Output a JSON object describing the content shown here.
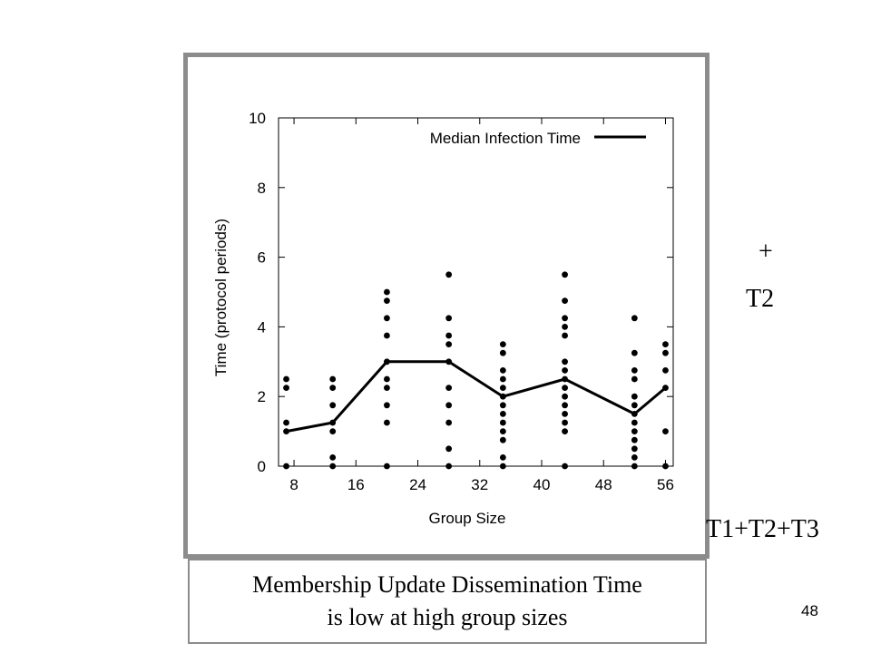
{
  "chart_data": {
    "type": "scatter",
    "xlabel": "Group Size",
    "ylabel": "Time (protocol periods)",
    "xlim": [
      6,
      57
    ],
    "ylim": [
      0,
      10
    ],
    "x_ticks": [
      8,
      16,
      24,
      32,
      40,
      48,
      56
    ],
    "y_ticks": [
      0,
      2,
      4,
      6,
      8,
      10
    ],
    "grid": false,
    "legend": "top-right",
    "series": [
      {
        "name": "Median Infection Time",
        "type": "line",
        "x": [
          7,
          13,
          20,
          28,
          35,
          43,
          52,
          56
        ],
        "y": [
          1.0,
          1.25,
          3.0,
          3.0,
          2.0,
          2.5,
          1.5,
          2.25
        ]
      }
    ],
    "scatter_points": [
      {
        "x": 7,
        "y": 0
      },
      {
        "x": 7,
        "y": 1
      },
      {
        "x": 7,
        "y": 1.25
      },
      {
        "x": 7,
        "y": 2.25
      },
      {
        "x": 7,
        "y": 2.5
      },
      {
        "x": 13,
        "y": 0
      },
      {
        "x": 13,
        "y": 0.25
      },
      {
        "x": 13,
        "y": 1
      },
      {
        "x": 13,
        "y": 1.25
      },
      {
        "x": 13,
        "y": 1.75
      },
      {
        "x": 13,
        "y": 2.25
      },
      {
        "x": 13,
        "y": 2.5
      },
      {
        "x": 20,
        "y": 0
      },
      {
        "x": 20,
        "y": 1.25
      },
      {
        "x": 20,
        "y": 1.75
      },
      {
        "x": 20,
        "y": 2.25
      },
      {
        "x": 20,
        "y": 2.5
      },
      {
        "x": 20,
        "y": 3
      },
      {
        "x": 20,
        "y": 3.75
      },
      {
        "x": 20,
        "y": 4.25
      },
      {
        "x": 20,
        "y": 4.75
      },
      {
        "x": 20,
        "y": 5
      },
      {
        "x": 28,
        "y": 0
      },
      {
        "x": 28,
        "y": 0.5
      },
      {
        "x": 28,
        "y": 1.25
      },
      {
        "x": 28,
        "y": 1.75
      },
      {
        "x": 28,
        "y": 2.25
      },
      {
        "x": 28,
        "y": 3
      },
      {
        "x": 28,
        "y": 3.5
      },
      {
        "x": 28,
        "y": 3.75
      },
      {
        "x": 28,
        "y": 4.25
      },
      {
        "x": 28,
        "y": 5.5
      },
      {
        "x": 35,
        "y": 0
      },
      {
        "x": 35,
        "y": 0.25
      },
      {
        "x": 35,
        "y": 0.75
      },
      {
        "x": 35,
        "y": 1
      },
      {
        "x": 35,
        "y": 1.25
      },
      {
        "x": 35,
        "y": 1.5
      },
      {
        "x": 35,
        "y": 1.75
      },
      {
        "x": 35,
        "y": 2
      },
      {
        "x": 35,
        "y": 2.25
      },
      {
        "x": 35,
        "y": 2.5
      },
      {
        "x": 35,
        "y": 2.75
      },
      {
        "x": 35,
        "y": 3.25
      },
      {
        "x": 35,
        "y": 3.5
      },
      {
        "x": 43,
        "y": 0
      },
      {
        "x": 43,
        "y": 1
      },
      {
        "x": 43,
        "y": 1.25
      },
      {
        "x": 43,
        "y": 1.5
      },
      {
        "x": 43,
        "y": 1.75
      },
      {
        "x": 43,
        "y": 2
      },
      {
        "x": 43,
        "y": 2.25
      },
      {
        "x": 43,
        "y": 2.5
      },
      {
        "x": 43,
        "y": 2.75
      },
      {
        "x": 43,
        "y": 3
      },
      {
        "x": 43,
        "y": 3.75
      },
      {
        "x": 43,
        "y": 4
      },
      {
        "x": 43,
        "y": 4.25
      },
      {
        "x": 43,
        "y": 4.75
      },
      {
        "x": 43,
        "y": 5.5
      },
      {
        "x": 52,
        "y": 0
      },
      {
        "x": 52,
        "y": 0.25
      },
      {
        "x": 52,
        "y": 0.5
      },
      {
        "x": 52,
        "y": 0.75
      },
      {
        "x": 52,
        "y": 1
      },
      {
        "x": 52,
        "y": 1.25
      },
      {
        "x": 52,
        "y": 1.5
      },
      {
        "x": 52,
        "y": 1.75
      },
      {
        "x": 52,
        "y": 2
      },
      {
        "x": 52,
        "y": 2.5
      },
      {
        "x": 52,
        "y": 2.75
      },
      {
        "x": 52,
        "y": 3.25
      },
      {
        "x": 52,
        "y": 4.25
      },
      {
        "x": 56,
        "y": 0
      },
      {
        "x": 56,
        "y": 1
      },
      {
        "x": 56,
        "y": 2.25
      },
      {
        "x": 56,
        "y": 2.75
      },
      {
        "x": 56,
        "y": 3.25
      },
      {
        "x": 56,
        "y": 3.5
      }
    ]
  },
  "colors": {
    "frame": "#8c8c8c",
    "line": "#000000",
    "points": "#000000"
  },
  "caption": {
    "line1": "Membership Update Dissemination Time",
    "line2": "is low at high group sizes"
  },
  "side_text": {
    "plus": "+",
    "t2": "T2",
    "sum": "T1+T2+T3"
  },
  "page_number": "48"
}
